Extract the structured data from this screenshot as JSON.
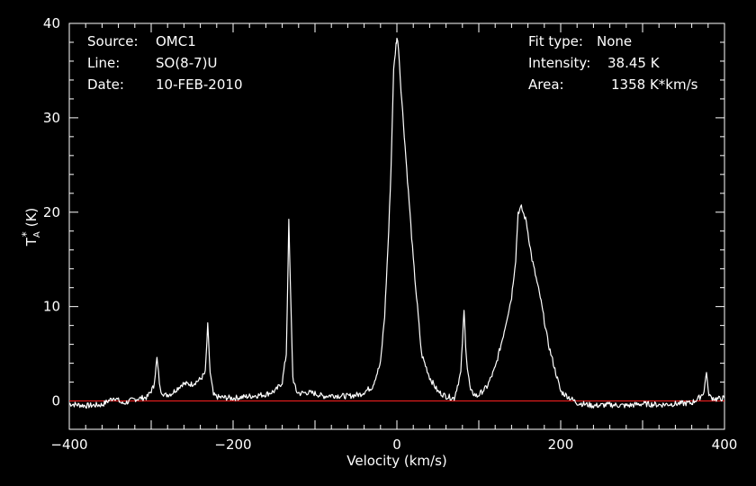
{
  "chart_data": {
    "type": "line",
    "xlabel": "Velocity (km/s)",
    "ylabel_main": "T",
    "ylabel_sub": "A",
    "ylabel_sup": "*",
    "ylabel_unit": "(K)",
    "xlim": [
      -400,
      400
    ],
    "ylim": [
      -3,
      40
    ],
    "x_ticks": [
      -400,
      -200,
      0,
      200,
      400
    ],
    "y_ticks": [
      0,
      10,
      20,
      30,
      40
    ],
    "grid": false,
    "baseline": 0,
    "colors": {
      "background": "#000000",
      "axes": "#ffffff",
      "spectrum": "#ffffff",
      "baseline": "#ff2020"
    },
    "series": [
      {
        "x": [
          -400,
          -380,
          -360,
          -345,
          -335,
          -320,
          -305,
          -297,
          -293,
          -289,
          -283,
          -275,
          -262,
          -250,
          -240,
          -234,
          -231,
          -228,
          -224,
          -218,
          -200,
          -180,
          -160,
          -148,
          -140,
          -135,
          -132,
          -130,
          -127,
          -123,
          -118,
          -110,
          -100,
          -90,
          -80,
          -60,
          -45,
          -30,
          -20,
          -15,
          -10,
          -7,
          -4,
          -1,
          0,
          2,
          5,
          10,
          15,
          20,
          30,
          40,
          50,
          60,
          70,
          78,
          82,
          84,
          86,
          90,
          98,
          110,
          120,
          130,
          140,
          145,
          148,
          152,
          158,
          165,
          175,
          185,
          200,
          220,
          240,
          260,
          280,
          300,
          320,
          340,
          360,
          370,
          375,
          378,
          380,
          383,
          390,
          400
        ],
        "y": [
          -0.3,
          -0.5,
          -0.4,
          0.4,
          -0.3,
          0.2,
          0.4,
          1.5,
          4.5,
          1.2,
          0.6,
          0.8,
          1.8,
          1.8,
          2.3,
          3.0,
          8.0,
          3.0,
          0.6,
          0.4,
          0.3,
          0.5,
          0.7,
          1.1,
          2.0,
          5.0,
          19.0,
          12.0,
          2.5,
          1.0,
          0.8,
          0.9,
          0.8,
          0.5,
          0.6,
          0.5,
          0.7,
          1.5,
          4.0,
          9.0,
          18.0,
          25.0,
          35.0,
          37.8,
          38.45,
          37.5,
          33.0,
          27.0,
          21.0,
          15.0,
          5.0,
          2.5,
          1.0,
          0.5,
          0.3,
          3.0,
          9.5,
          6.0,
          3.5,
          1.0,
          0.5,
          1.5,
          3.5,
          7.0,
          11.0,
          15.0,
          20.0,
          20.5,
          19.0,
          15.0,
          11.0,
          6.0,
          1.0,
          -0.2,
          -0.5,
          -0.4,
          -0.5,
          -0.3,
          -0.4,
          -0.3,
          -0.2,
          0.4,
          1.0,
          3.2,
          1.0,
          0.4,
          0.2,
          0.3
        ]
      }
    ]
  },
  "info": {
    "left": [
      {
        "label": "Source:",
        "value": "OMC1"
      },
      {
        "label": "Line:",
        "value": "SO(8-7)U"
      },
      {
        "label": "Date:",
        "value": "10-FEB-2010"
      }
    ],
    "right": [
      {
        "label": "Fit type:",
        "value": "None"
      },
      {
        "label": "Intensity:",
        "value": "38.45 K"
      },
      {
        "label": "Area:",
        "value": "1358 K*km/s"
      }
    ]
  }
}
